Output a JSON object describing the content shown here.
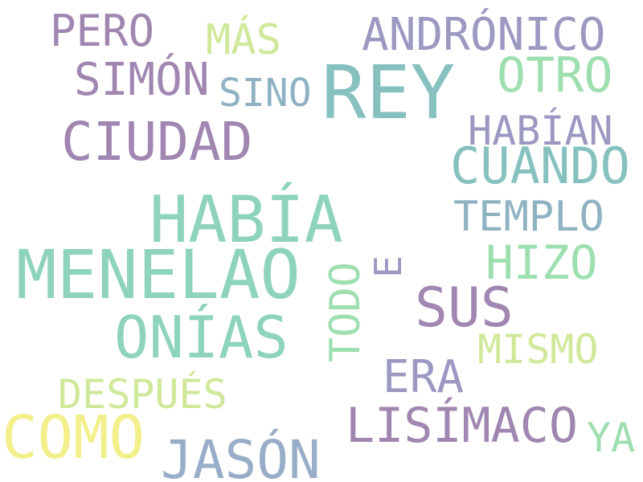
{
  "palette": {
    "purple": "#a086b0",
    "lavender": "#9b98c2",
    "teal": "#86c1c0",
    "sea": "#8ed3bc",
    "mint": "#9edfb0",
    "steel": "#8fb2c3",
    "lime": "#d0e89a",
    "yellow": "#f3ef8a",
    "blue": "#98aec8"
  },
  "words": {
    "pero": "PERO",
    "mas": "MÁS",
    "andronico": "ANDRÓNICO",
    "simon": "SIMÓN",
    "sino": "SINO",
    "rey": "REY",
    "otro": "OTRO",
    "habian": "HABÍAN",
    "ciudad": "CIUDAD",
    "cuando": "CUANDO",
    "habia": "HABÍA",
    "templo": "TEMPLO",
    "menelao": "MENELAO",
    "e": "E",
    "hizo": "HIZO",
    "todo": "TODO",
    "sus": "SUS",
    "onias": "ONÍAS",
    "mismo": "MISMO",
    "era": "ERA",
    "despues": "DESPUÉS",
    "lisimaco": "LISÍMACO",
    "como": "COMO",
    "ya": "YA",
    "jason": "JASÓN"
  }
}
